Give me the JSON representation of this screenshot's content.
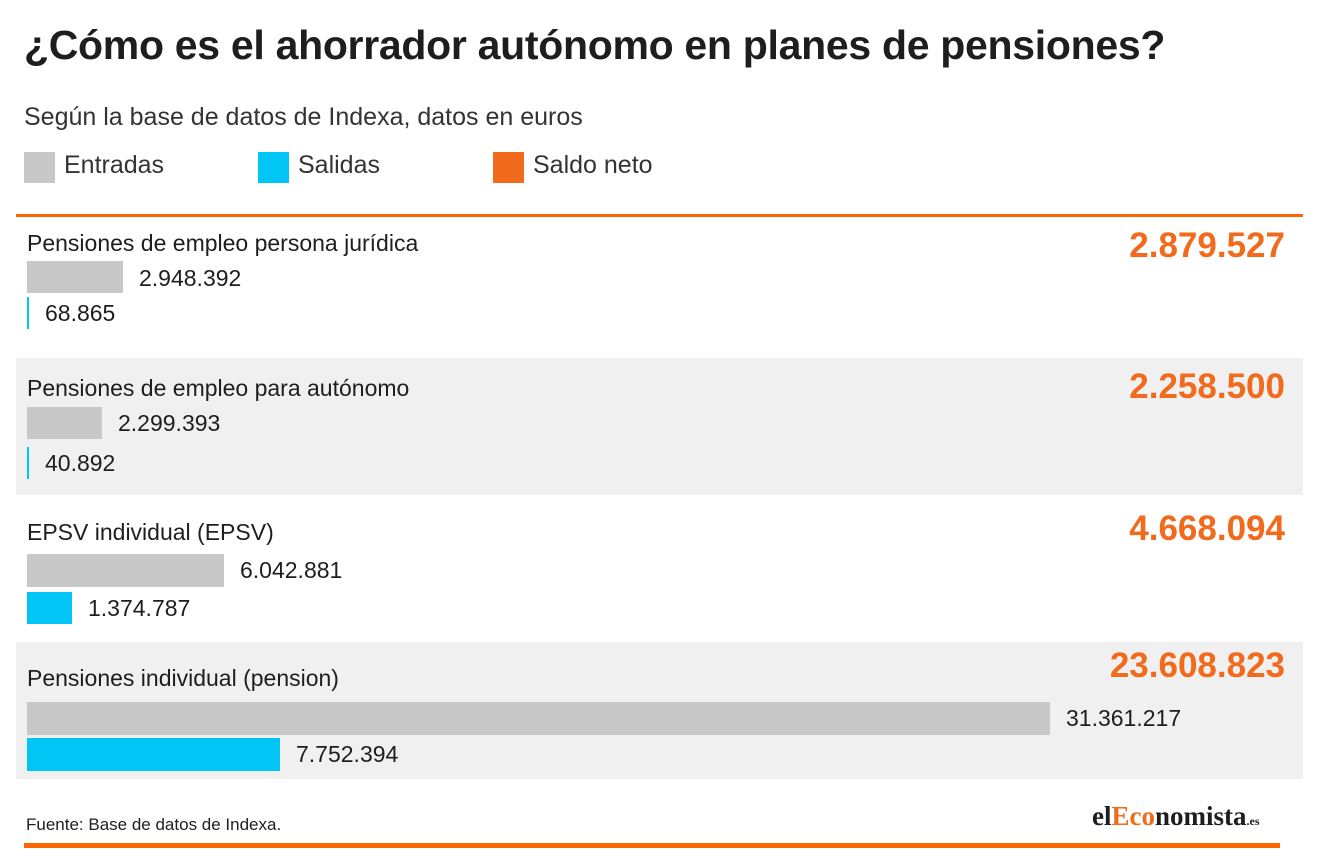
{
  "header": {
    "title": "¿Cómo es el ahorrador autónomo en planes de pensiones?",
    "subtitle": "Según la base de datos de Indexa, datos en euros"
  },
  "colors": {
    "entradas": "#c8c8c8",
    "salidas": "#00c5f5",
    "saldo_neto": "#f26a1b",
    "rule": "#ff6600",
    "band": "#f0f0f0"
  },
  "chart_data": {
    "type": "bar",
    "orientation": "horizontal",
    "title": "¿Cómo es el ahorrador autónomo en planes de pensiones?",
    "subtitle": "Según la base de datos de Indexa, datos en euros",
    "legend": [
      "Entradas",
      "Salidas",
      "Saldo neto"
    ],
    "legend_placement": "top-left",
    "grid": false,
    "xlim": [
      0,
      31361217
    ],
    "categories": [
      "Pensiones de empleo persona jurídica",
      "Pensiones de empleo para autónomo",
      "EPSV individual (EPSV)",
      "Pensiones individual (pension)"
    ],
    "series": [
      {
        "name": "Entradas",
        "values": [
          2948392,
          2299393,
          6042881,
          31361217
        ],
        "labels": [
          "2.948.392",
          "2.299.393",
          "6.042.881",
          "31.361.217"
        ]
      },
      {
        "name": "Salidas",
        "values": [
          68865,
          40892,
          1374787,
          7752394
        ],
        "labels": [
          "68.865",
          "40.892",
          "1.374.787",
          "7.752.394"
        ]
      },
      {
        "name": "Saldo neto",
        "values": [
          2879527,
          2258500,
          4668094,
          23608823
        ],
        "labels": [
          "2.879.527",
          "2.258.500",
          "4.668.094",
          "23.608.823"
        ]
      }
    ]
  },
  "footer": {
    "source": "Fuente: Base de datos de Indexa.",
    "logo": {
      "part1": "el",
      "part2": "Eco",
      "part3": "nomista",
      "part4": ".es"
    }
  }
}
